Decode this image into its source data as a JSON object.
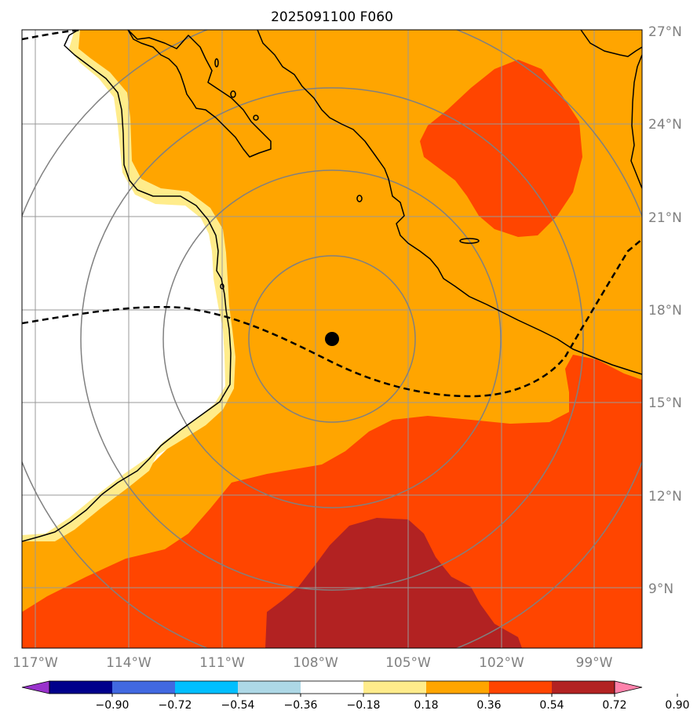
{
  "title": "2025091100 F060",
  "lat_labels": [
    "27°N",
    "24°N",
    "21°N",
    "18°N",
    "15°N",
    "12°N",
    "9°N"
  ],
  "lon_labels": [
    "117°W",
    "114°W",
    "111°W",
    "108°W",
    "105°W",
    "102°W",
    "99°W"
  ],
  "colorbar": {
    "ticks": [
      "−0.90",
      "−0.72",
      "−0.54",
      "−0.36",
      "−0.18",
      "0.18",
      "0.36",
      "0.54",
      "0.72",
      "0.90"
    ],
    "colors": [
      "#9932cc",
      "#00008b",
      "#4169e1",
      "#00bfff",
      "#add8e6",
      "#ffffff",
      "#ffec8b",
      "#ffa500",
      "#ff4500",
      "#b22222",
      "#ff82ab"
    ]
  },
  "storm_center": {
    "lat": 17.0,
    "lon": -107.5
  },
  "range_rings": [
    "inner",
    "middle",
    "outer",
    "outermost"
  ]
}
